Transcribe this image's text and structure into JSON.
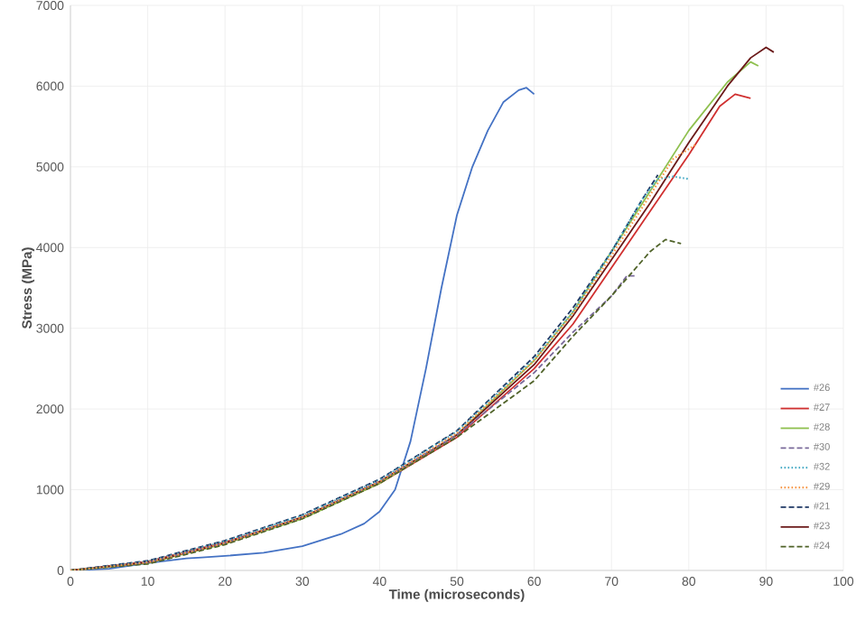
{
  "chart_data": {
    "type": "line",
    "xlabel": "Time (microseconds)",
    "ylabel": "Stress (MPa)",
    "xlim": [
      0,
      100
    ],
    "ylim": [
      0,
      7000
    ],
    "xticks": [
      0,
      10,
      20,
      30,
      40,
      50,
      60,
      70,
      80,
      90,
      100
    ],
    "yticks": [
      0,
      1000,
      2000,
      3000,
      4000,
      5000,
      6000,
      7000
    ],
    "grid": true,
    "legend": "bottom right",
    "marker": "none",
    "series": [
      {
        "name": "#26",
        "color": "#4472c4",
        "line_style": "solid",
        "x": [
          0,
          5,
          10,
          15,
          17,
          20,
          25,
          30,
          35,
          38,
          40,
          42,
          44,
          46,
          48,
          50,
          52,
          54,
          56,
          58,
          59,
          60
        ],
        "values": [
          0,
          20,
          90,
          150,
          160,
          180,
          220,
          300,
          450,
          580,
          730,
          1000,
          1600,
          2500,
          3500,
          4400,
          5000,
          5450,
          5800,
          5950,
          5980,
          5900
        ]
      },
      {
        "name": "#27",
        "color": "#d03030",
        "line_style": "solid",
        "x": [
          0,
          10,
          20,
          30,
          40,
          50,
          60,
          65,
          70,
          75,
          80,
          84,
          86,
          88
        ],
        "values": [
          0,
          110,
          350,
          650,
          1080,
          1650,
          2500,
          3050,
          3750,
          4450,
          5150,
          5750,
          5900,
          5850
        ]
      },
      {
        "name": "#28",
        "color": "#8fc04f",
        "line_style": "solid",
        "x": [
          0,
          10,
          20,
          30,
          40,
          50,
          60,
          65,
          70,
          75,
          80,
          85,
          88,
          89
        ],
        "values": [
          0,
          90,
          330,
          640,
          1080,
          1680,
          2600,
          3200,
          3950,
          4700,
          5450,
          6050,
          6300,
          6250
        ]
      },
      {
        "name": "#30",
        "color": "#7a6a9a",
        "line_style": "dashed",
        "x": [
          0,
          10,
          20,
          30,
          40,
          50,
          60,
          65,
          70,
          72,
          73
        ],
        "values": [
          0,
          100,
          340,
          650,
          1100,
          1680,
          2450,
          2950,
          3400,
          3650,
          3650
        ]
      },
      {
        "name": "#32",
        "color": "#4bacc6",
        "line_style": "dotted",
        "x": [
          0,
          10,
          20,
          30,
          40,
          50,
          60,
          65,
          70,
          74,
          76,
          78,
          80
        ],
        "values": [
          0,
          110,
          360,
          680,
          1120,
          1720,
          2620,
          3200,
          3950,
          4600,
          4850,
          4880,
          4850
        ]
      },
      {
        "name": "#29",
        "color": "#f79646",
        "line_style": "dotted",
        "x": [
          0,
          10,
          20,
          30,
          40,
          50,
          60,
          65,
          70,
          75,
          78,
          81
        ],
        "values": [
          0,
          100,
          340,
          660,
          1100,
          1700,
          2600,
          3180,
          3900,
          4650,
          5100,
          5280
        ]
      },
      {
        "name": "#21",
        "color": "#1f3864",
        "line_style": "dashed",
        "x": [
          0,
          10,
          20,
          30,
          40,
          50,
          60,
          65,
          70,
          74,
          76
        ],
        "values": [
          0,
          120,
          370,
          690,
          1130,
          1730,
          2650,
          3250,
          3950,
          4600,
          4900
        ]
      },
      {
        "name": "#23",
        "color": "#6b1a1a",
        "line_style": "solid",
        "x": [
          0,
          10,
          20,
          30,
          40,
          50,
          60,
          65,
          70,
          75,
          80,
          85,
          88,
          90,
          91
        ],
        "values": [
          0,
          100,
          340,
          660,
          1100,
          1680,
          2550,
          3150,
          3850,
          4550,
          5300,
          6000,
          6350,
          6480,
          6420
        ]
      },
      {
        "name": "#24",
        "color": "#4f6228",
        "line_style": "dashed",
        "x": [
          0,
          10,
          20,
          30,
          40,
          50,
          60,
          65,
          70,
          75,
          77,
          79
        ],
        "values": [
          0,
          80,
          320,
          640,
          1080,
          1650,
          2350,
          2900,
          3400,
          3950,
          4100,
          4050
        ]
      }
    ]
  }
}
